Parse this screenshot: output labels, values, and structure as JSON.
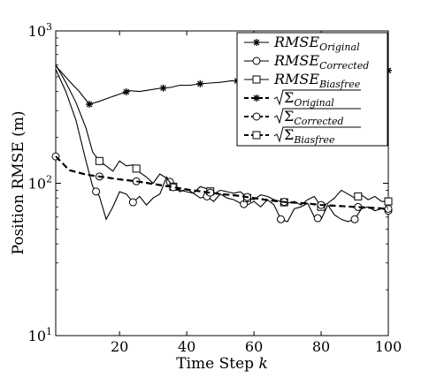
{
  "chart_data": {
    "type": "line",
    "xlabel": "Time Step",
    "xlabel_var": "k",
    "ylabel": "Position RMSE (m)",
    "yscale": "log",
    "xlim": [
      1,
      100
    ],
    "ylim": [
      10,
      1000
    ],
    "x_ticks": [
      20,
      40,
      60,
      80,
      100
    ],
    "y_ticks": [
      {
        "value": 10,
        "base": "10",
        "exp": "1"
      },
      {
        "value": 100,
        "base": "10",
        "exp": "2"
      },
      {
        "value": 1000,
        "base": "10",
        "exp": "3"
      }
    ],
    "grid": false,
    "legend": {
      "placement": "top-right"
    },
    "series": [
      {
        "name": "RMSE",
        "sub": "Original",
        "style": "solid",
        "marker": "star",
        "points": [
          [
            1,
            590
          ],
          [
            5,
            470
          ],
          [
            8,
            400
          ],
          [
            11,
            330
          ],
          [
            14,
            345
          ],
          [
            17,
            365
          ],
          [
            20,
            385
          ],
          [
            23,
            405
          ],
          [
            26,
            400
          ],
          [
            29,
            410
          ],
          [
            32,
            420
          ],
          [
            35,
            425
          ],
          [
            38,
            440
          ],
          [
            41,
            440
          ],
          [
            44,
            450
          ],
          [
            47,
            455
          ],
          [
            50,
            460
          ],
          [
            53,
            470
          ],
          [
            56,
            470
          ],
          [
            59,
            480
          ],
          [
            62,
            485
          ],
          [
            65,
            490
          ],
          [
            68,
            500
          ],
          [
            71,
            500
          ],
          [
            74,
            510
          ],
          [
            77,
            515
          ],
          [
            80,
            520
          ],
          [
            83,
            525
          ],
          [
            86,
            530
          ],
          [
            89,
            535
          ],
          [
            92,
            540
          ],
          [
            95,
            545
          ],
          [
            98,
            550
          ],
          [
            100,
            550
          ]
        ],
        "marker_x": [
          11,
          22,
          33,
          44,
          55,
          66,
          77,
          88,
          100
        ]
      },
      {
        "name": "RMSE",
        "sub": "Corrected",
        "style": "solid",
        "marker": "circle",
        "points": [
          [
            1,
            560
          ],
          [
            4,
            400
          ],
          [
            7,
            260
          ],
          [
            10,
            140
          ],
          [
            12,
            95
          ],
          [
            14,
            82
          ],
          [
            16,
            58
          ],
          [
            18,
            70
          ],
          [
            20,
            88
          ],
          [
            22,
            85
          ],
          [
            24,
            75
          ],
          [
            26,
            82
          ],
          [
            28,
            72
          ],
          [
            30,
            80
          ],
          [
            32,
            85
          ],
          [
            34,
            110
          ],
          [
            36,
            95
          ],
          [
            38,
            90
          ],
          [
            40,
            88
          ],
          [
            42,
            86
          ],
          [
            44,
            80
          ],
          [
            46,
            82
          ],
          [
            48,
            76
          ],
          [
            50,
            85
          ],
          [
            52,
            80
          ],
          [
            54,
            78
          ],
          [
            56,
            74
          ],
          [
            58,
            72
          ],
          [
            60,
            76
          ],
          [
            62,
            70
          ],
          [
            64,
            78
          ],
          [
            66,
            72
          ],
          [
            68,
            58
          ],
          [
            70,
            56
          ],
          [
            72,
            68
          ],
          [
            74,
            70
          ],
          [
            76,
            74
          ],
          [
            78,
            60
          ],
          [
            80,
            58
          ],
          [
            82,
            72
          ],
          [
            84,
            62
          ],
          [
            86,
            58
          ],
          [
            88,
            56
          ],
          [
            90,
            58
          ],
          [
            92,
            68
          ],
          [
            94,
            70
          ],
          [
            96,
            66
          ],
          [
            98,
            68
          ],
          [
            100,
            66
          ]
        ],
        "marker_x": [
          13,
          24,
          35,
          46,
          57,
          68,
          79,
          90,
          100
        ]
      },
      {
        "name": "RMSE",
        "sub": "Biasfree",
        "style": "solid",
        "marker": "square",
        "points": [
          [
            1,
            600
          ],
          [
            4,
            460
          ],
          [
            7,
            340
          ],
          [
            10,
            230
          ],
          [
            12,
            160
          ],
          [
            14,
            140
          ],
          [
            16,
            130
          ],
          [
            18,
            120
          ],
          [
            20,
            140
          ],
          [
            22,
            130
          ],
          [
            24,
            132
          ],
          [
            26,
            118
          ],
          [
            28,
            110
          ],
          [
            30,
            100
          ],
          [
            32,
            115
          ],
          [
            34,
            108
          ],
          [
            36,
            95
          ],
          [
            38,
            88
          ],
          [
            40,
            92
          ],
          [
            42,
            86
          ],
          [
            44,
            95
          ],
          [
            46,
            92
          ],
          [
            48,
            85
          ],
          [
            50,
            90
          ],
          [
            52,
            88
          ],
          [
            54,
            86
          ],
          [
            56,
            88
          ],
          [
            58,
            80
          ],
          [
            60,
            78
          ],
          [
            62,
            84
          ],
          [
            64,
            82
          ],
          [
            66,
            78
          ],
          [
            68,
            76
          ],
          [
            70,
            74
          ],
          [
            72,
            76
          ],
          [
            74,
            72
          ],
          [
            76,
            78
          ],
          [
            78,
            82
          ],
          [
            80,
            70
          ],
          [
            82,
            74
          ],
          [
            84,
            80
          ],
          [
            86,
            90
          ],
          [
            88,
            85
          ],
          [
            90,
            80
          ],
          [
            92,
            84
          ],
          [
            94,
            78
          ],
          [
            96,
            82
          ],
          [
            98,
            76
          ],
          [
            100,
            76
          ]
        ],
        "marker_x": [
          14,
          25,
          36,
          47,
          58,
          69,
          80,
          91,
          100
        ]
      },
      {
        "name": "Σ",
        "sub": "Original",
        "style": "dashed",
        "marker": "star",
        "points": [
          [
            1,
            150
          ],
          [
            5,
            122
          ],
          [
            10,
            114
          ],
          [
            15,
            110
          ],
          [
            20,
            106
          ],
          [
            25,
            103
          ],
          [
            30,
            99
          ],
          [
            35,
            95
          ],
          [
            40,
            91
          ],
          [
            45,
            88
          ],
          [
            50,
            85
          ],
          [
            55,
            83
          ],
          [
            60,
            80
          ],
          [
            65,
            77
          ],
          [
            70,
            75
          ],
          [
            75,
            74
          ],
          [
            80,
            72
          ],
          [
            85,
            71
          ],
          [
            90,
            70
          ],
          [
            95,
            69
          ],
          [
            100,
            68
          ]
        ],
        "marker_x": [
          1,
          14,
          25,
          36,
          47,
          58,
          69,
          80,
          91,
          100
        ]
      },
      {
        "name": "Σ",
        "sub": "Corrected",
        "style": "dashed",
        "marker": "circle",
        "points": [
          [
            1,
            150
          ],
          [
            5,
            122
          ],
          [
            10,
            114
          ],
          [
            15,
            110
          ],
          [
            20,
            106
          ],
          [
            25,
            103
          ],
          [
            30,
            99
          ],
          [
            35,
            95
          ],
          [
            40,
            91
          ],
          [
            45,
            88
          ],
          [
            50,
            85
          ],
          [
            55,
            83
          ],
          [
            60,
            80
          ],
          [
            65,
            77
          ],
          [
            70,
            75
          ],
          [
            75,
            74
          ],
          [
            80,
            72
          ],
          [
            85,
            71
          ],
          [
            90,
            70
          ],
          [
            95,
            69
          ],
          [
            100,
            68
          ]
        ],
        "marker_x": [
          1,
          14,
          25,
          36,
          47,
          58,
          69,
          80,
          91,
          100
        ]
      },
      {
        "name": "Σ",
        "sub": "Biasfree",
        "style": "dashed",
        "marker": "square",
        "points": [
          [
            1,
            150
          ],
          [
            5,
            122
          ],
          [
            10,
            114
          ],
          [
            15,
            110
          ],
          [
            20,
            106
          ],
          [
            25,
            103
          ],
          [
            30,
            99
          ],
          [
            35,
            95
          ],
          [
            40,
            91
          ],
          [
            45,
            88
          ],
          [
            50,
            85
          ],
          [
            55,
            83
          ],
          [
            60,
            80
          ],
          [
            65,
            77
          ],
          [
            70,
            75
          ],
          [
            75,
            74
          ],
          [
            80,
            72
          ],
          [
            85,
            71
          ],
          [
            90,
            70
          ],
          [
            95,
            69
          ],
          [
            100,
            68
          ]
        ],
        "marker_x": []
      }
    ]
  }
}
